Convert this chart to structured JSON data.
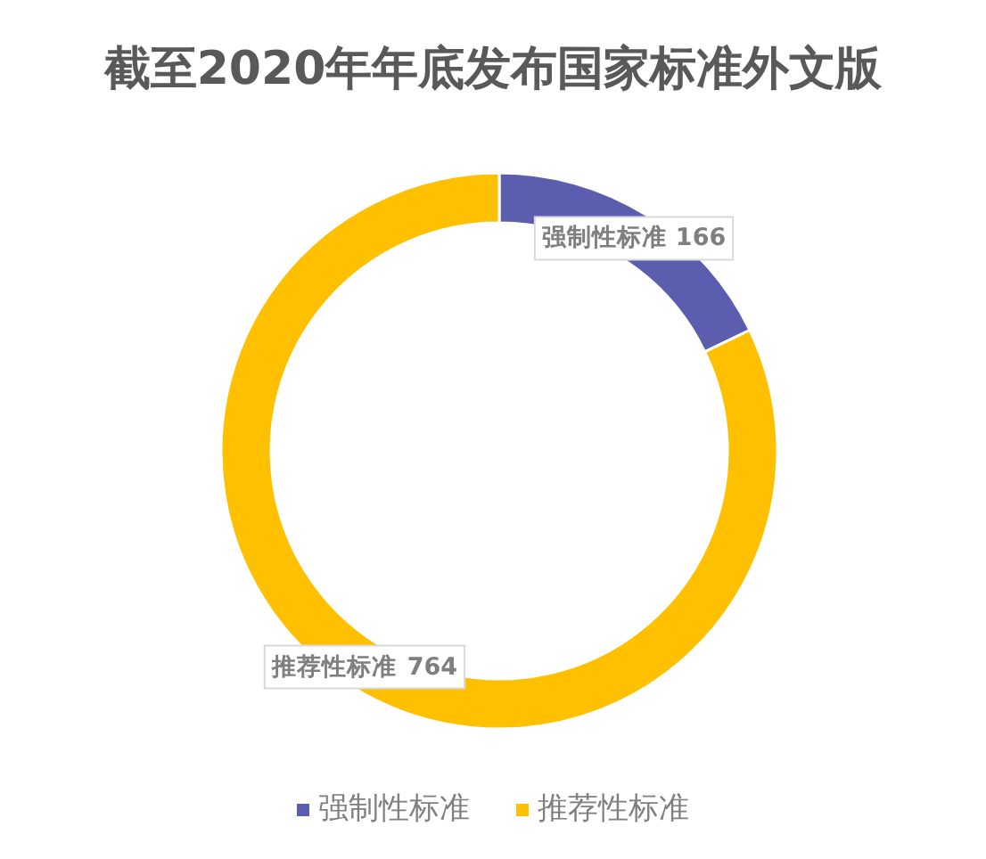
{
  "chart_data": {
    "type": "donut",
    "title": "截至2020年年底发布国家标准外文版",
    "categories": [
      "强制性标准",
      "推荐性标准"
    ],
    "values": [
      166,
      764
    ],
    "colors": [
      "#5b5eae",
      "#ffc000"
    ],
    "data_labels": true,
    "legend": "bottom"
  }
}
